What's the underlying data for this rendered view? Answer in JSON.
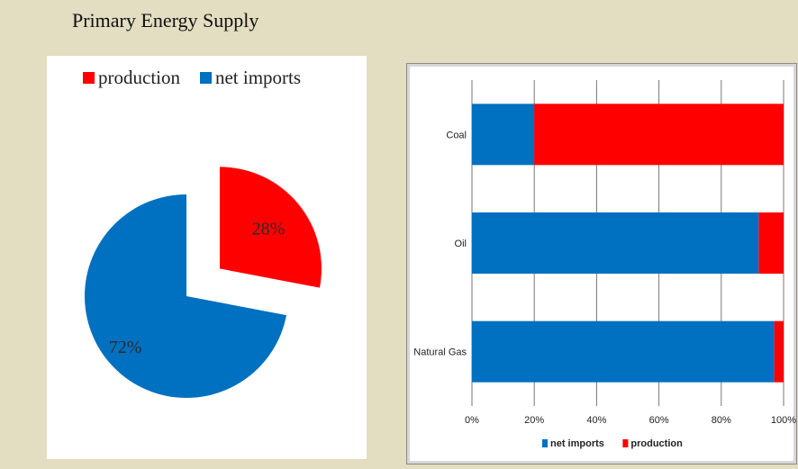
{
  "page": {
    "title": "Primary Energy Supply"
  },
  "colors": {
    "production": "#ff0000",
    "net_imports": "#0070c0",
    "grid": "#777777"
  },
  "chart_data": [
    {
      "type": "pie",
      "legend": [
        {
          "name": "production",
          "color": "#ff0000"
        },
        {
          "name": "net imports",
          "color": "#0070c0"
        }
      ],
      "slices": [
        {
          "name": "production",
          "value": 28,
          "label": "28%",
          "color": "#ff0000",
          "exploded": true
        },
        {
          "name": "net imports",
          "value": 72,
          "label": "72%",
          "color": "#0070c0",
          "exploded": false
        }
      ],
      "legend_position": "top"
    },
    {
      "type": "bar",
      "orientation": "horizontal",
      "stacked": "percent",
      "categories": [
        "Coal",
        "Oil",
        "Natural Gas"
      ],
      "series": [
        {
          "name": "net imports",
          "color": "#0070c0",
          "values": [
            20,
            92,
            97
          ]
        },
        {
          "name": "production",
          "color": "#ff0000",
          "values": [
            80,
            8,
            3
          ]
        }
      ],
      "xlim": [
        0,
        100
      ],
      "xticks": [
        "0%",
        "20%",
        "40%",
        "60%",
        "80%",
        "100%"
      ],
      "grid": true,
      "legend_position": "bottom"
    }
  ]
}
